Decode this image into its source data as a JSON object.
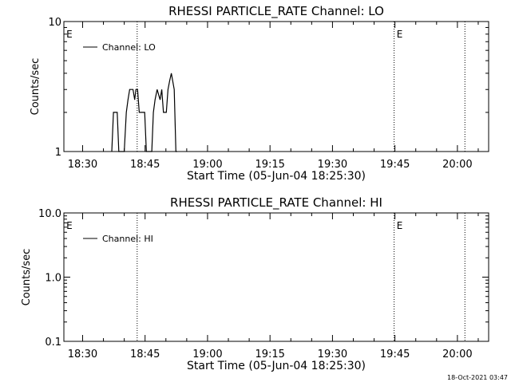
{
  "footer": {
    "timestamp": "18-Oct-2021 03:47"
  },
  "chart_data": [
    {
      "type": "line",
      "title": "RHESSI PARTICLE_RATE Channel: LO",
      "xlabel": "Start Time (05-Jun-04 18:25:30)",
      "ylabel": "Counts/sec",
      "y_scale": "log",
      "ylim": [
        1,
        10
      ],
      "y_ticks": [
        {
          "value": 1,
          "label": "1"
        },
        {
          "value": 10,
          "label": "10"
        }
      ],
      "x_unit": "minutes after 18:25:30",
      "xlim": [
        0,
        102
      ],
      "x_ticks": [
        {
          "value": 4.5,
          "label": "18:30"
        },
        {
          "value": 19.5,
          "label": "18:45"
        },
        {
          "value": 34.5,
          "label": "19:00"
        },
        {
          "value": 49.5,
          "label": "19:15"
        },
        {
          "value": 64.5,
          "label": "19:30"
        },
        {
          "value": 79.5,
          "label": "19:45"
        },
        {
          "value": 94.5,
          "label": "20:00"
        }
      ],
      "event_lines": [
        {
          "x": 17.6,
          "label": "E"
        },
        {
          "x": 79.3,
          "label": ""
        },
        {
          "x": 96.3,
          "label": ""
        }
      ],
      "event_markers": [
        {
          "x": 0.6,
          "label": "E"
        },
        {
          "x": 79.9,
          "label": "E"
        }
      ],
      "legend": {
        "placement": "top-left"
      },
      "series": [
        {
          "name": "Channel: LO",
          "color": "#000000",
          "points": [
            [
              11.5,
              0.9
            ],
            [
              11.9,
              2.0
            ],
            [
              12.8,
              2.0
            ],
            [
              13.2,
              1.0
            ],
            [
              13.7,
              0.9
            ],
            [
              14.5,
              1.0
            ],
            [
              15.0,
              2.0
            ],
            [
              15.4,
              2.5
            ],
            [
              15.8,
              3.0
            ],
            [
              16.6,
              3.0
            ],
            [
              17.0,
              2.5
            ],
            [
              17.3,
              3.0
            ],
            [
              17.7,
              3.0
            ],
            [
              18.1,
              2.0
            ],
            [
              19.4,
              2.0
            ],
            [
              19.8,
              1.0
            ],
            [
              20.3,
              0.9
            ],
            [
              21.1,
              1.0
            ],
            [
              21.5,
              2.0
            ],
            [
              21.9,
              2.5
            ],
            [
              22.4,
              3.0
            ],
            [
              23.1,
              2.5
            ],
            [
              23.5,
              3.0
            ],
            [
              23.9,
              2.0
            ],
            [
              24.6,
              2.0
            ],
            [
              25.0,
              3.0
            ],
            [
              25.4,
              3.5
            ],
            [
              25.8,
              4.0
            ],
            [
              26.5,
              3.0
            ],
            [
              26.9,
              1.0
            ],
            [
              27.2,
              0.9
            ]
          ]
        }
      ]
    },
    {
      "type": "line",
      "title": "RHESSI PARTICLE_RATE Channel: HI",
      "xlabel": "Start Time (05-Jun-04 18:25:30)",
      "ylabel": "Counts/sec",
      "y_scale": "log",
      "ylim": [
        0.1,
        10
      ],
      "y_ticks": [
        {
          "value": 0.1,
          "label": "0.1"
        },
        {
          "value": 1,
          "label": "1.0"
        },
        {
          "value": 10,
          "label": "10.0"
        }
      ],
      "x_unit": "minutes after 18:25:30",
      "xlim": [
        0,
        102
      ],
      "x_ticks": [
        {
          "value": 4.5,
          "label": "18:30"
        },
        {
          "value": 19.5,
          "label": "18:45"
        },
        {
          "value": 34.5,
          "label": "19:00"
        },
        {
          "value": 49.5,
          "label": "19:15"
        },
        {
          "value": 64.5,
          "label": "19:30"
        },
        {
          "value": 79.5,
          "label": "19:45"
        },
        {
          "value": 94.5,
          "label": "20:00"
        }
      ],
      "event_lines": [
        {
          "x": 17.6,
          "label": "E"
        },
        {
          "x": 79.3,
          "label": ""
        },
        {
          "x": 96.3,
          "label": ""
        }
      ],
      "event_markers": [
        {
          "x": 0.6,
          "label": "E"
        },
        {
          "x": 79.9,
          "label": "E"
        }
      ],
      "legend": {
        "placement": "top-left"
      },
      "series": [
        {
          "name": "Channel: HI",
          "color": "#000000",
          "points": []
        }
      ]
    }
  ]
}
